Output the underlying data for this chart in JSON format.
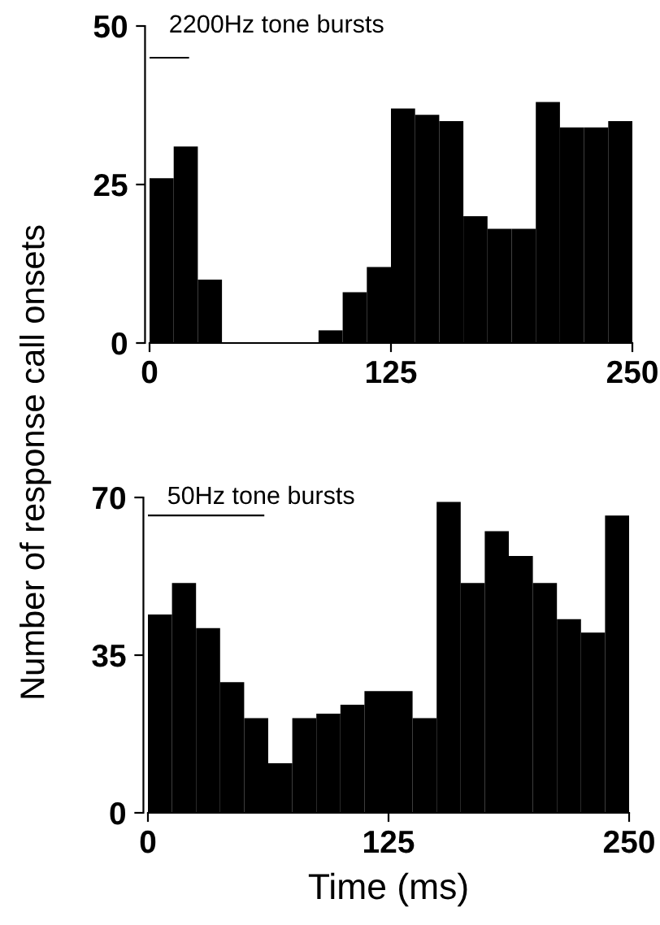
{
  "chart_data": [
    {
      "type": "histogram",
      "title": "2200Hz tone bursts",
      "ylabel": "Number of response call onsets",
      "xlim": [
        0,
        250
      ],
      "xticks": [
        0,
        125,
        250
      ],
      "ylim": [
        0,
        50
      ],
      "yticks": [
        0,
        25,
        50
      ],
      "grid": false,
      "legend": false,
      "series": [
        {
          "type": "histogram",
          "color": "#000000",
          "bins": [
            0,
            12.5,
            25,
            37.5,
            50,
            62.5,
            75,
            87.5,
            100,
            112.5,
            125,
            137.5,
            150,
            162.5,
            175,
            187.5,
            200,
            212.5,
            225,
            237.5,
            250
          ],
          "values": [
            26,
            31,
            10,
            0,
            0,
            0,
            0,
            2,
            8,
            12,
            37,
            36,
            35,
            20,
            18,
            18,
            38,
            34,
            34,
            35
          ]
        },
        {
          "type": "line",
          "color": "#000000",
          "x": [
            0,
            20
          ],
          "values": [
            45,
            45
          ]
        }
      ]
    },
    {
      "type": "histogram",
      "title": "50Hz tone bursts",
      "xlabel": "Time (ms)",
      "xlim": [
        0,
        250
      ],
      "xticks": [
        0,
        125,
        250
      ],
      "ylim": [
        0,
        70
      ],
      "yticks": [
        0,
        35,
        70
      ],
      "grid": false,
      "legend": false,
      "series": [
        {
          "type": "histogram",
          "color": "#000000",
          "bins": [
            0,
            12.5,
            25,
            37.5,
            50,
            62.5,
            75,
            87.5,
            100,
            112.5,
            125,
            137.5,
            150,
            162.5,
            175,
            187.5,
            200,
            212.5,
            225,
            237.5,
            250
          ],
          "values": [
            44,
            51,
            41,
            29,
            21,
            11,
            21,
            22,
            24,
            27,
            27,
            21,
            69,
            51,
            62.5,
            57,
            51,
            43,
            40,
            66
          ]
        },
        {
          "type": "line",
          "color": "#000000",
          "x": [
            0,
            60
          ],
          "values": [
            66,
            66
          ]
        }
      ]
    }
  ]
}
